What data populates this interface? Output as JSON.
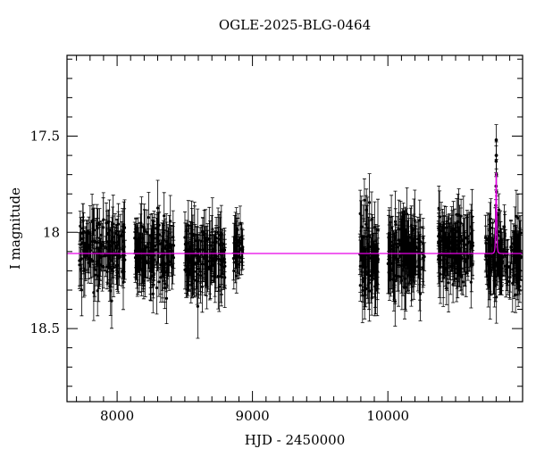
{
  "figure": {
    "background": "#ffffff"
  },
  "chart_data": {
    "type": "scatter",
    "title": "OGLE-2025-BLG-0464",
    "xlabel": "HJD - 2450000",
    "ylabel": "I magnitude",
    "xlim": [
      7630,
      10995
    ],
    "ylim": [
      18.88,
      17.08
    ],
    "xticks": [
      8000,
      9000,
      10000
    ],
    "xtick_labels": [
      "8000",
      "9000",
      "10000"
    ],
    "x_minor_step": 100,
    "yticks": [
      17.5,
      18,
      18.5
    ],
    "ytick_labels": [
      "17.5",
      "18",
      "18.5"
    ],
    "y_minor_step": 0.1,
    "grid": false,
    "legend": null,
    "axis_inverted": true,
    "point_color": "#000000",
    "model_color": "#e800e8",
    "baseline_mag": 18.11,
    "seasons": [
      {
        "x_start": 7720,
        "x_end": 8060,
        "n": 150,
        "mean_mag": 18.1,
        "scatter": 0.075,
        "err": 0.1
      },
      {
        "x_start": 8130,
        "x_end": 8420,
        "n": 140,
        "mean_mag": 18.11,
        "scatter": 0.075,
        "err": 0.1
      },
      {
        "x_start": 8500,
        "x_end": 8800,
        "n": 150,
        "mean_mag": 18.13,
        "scatter": 0.08,
        "err": 0.11
      },
      {
        "x_start": 8860,
        "x_end": 8930,
        "n": 35,
        "mean_mag": 18.08,
        "scatter": 0.07,
        "err": 0.09
      },
      {
        "x_start": 9790,
        "x_end": 9930,
        "n": 85,
        "mean_mag": 18.12,
        "scatter": 0.09,
        "err": 0.11
      },
      {
        "x_start": 10000,
        "x_end": 10270,
        "n": 140,
        "mean_mag": 18.12,
        "scatter": 0.085,
        "err": 0.11
      },
      {
        "x_start": 10370,
        "x_end": 10630,
        "n": 150,
        "mean_mag": 18.1,
        "scatter": 0.075,
        "err": 0.1
      },
      {
        "x_start": 10720,
        "x_end": 10985,
        "n": 140,
        "mean_mag": 18.12,
        "scatter": 0.08,
        "err": 0.1
      }
    ],
    "event": {
      "t0": 10800,
      "tE": 4,
      "u0": 0.85,
      "peak_model_mag": 17.69,
      "points": [
        {
          "x": 10794.0,
          "mag": 18.03,
          "err": 0.09
        },
        {
          "x": 10797.0,
          "mag": 17.94,
          "err": 0.08
        },
        {
          "x": 10798.5,
          "mag": 17.86,
          "err": 0.08
        },
        {
          "x": 10799.2,
          "mag": 17.76,
          "err": 0.07
        },
        {
          "x": 10799.8,
          "mag": 17.63,
          "err": 0.08
        },
        {
          "x": 10800.2,
          "mag": 17.52,
          "err": 0.08
        },
        {
          "x": 10800.8,
          "mag": 17.6,
          "err": 0.07
        },
        {
          "x": 10801.5,
          "mag": 17.7,
          "err": 0.08
        },
        {
          "x": 10802.5,
          "mag": 17.79,
          "err": 0.08
        },
        {
          "x": 10804.0,
          "mag": 17.9,
          "err": 0.09
        },
        {
          "x": 10807.0,
          "mag": 18.0,
          "err": 0.09
        }
      ]
    }
  }
}
